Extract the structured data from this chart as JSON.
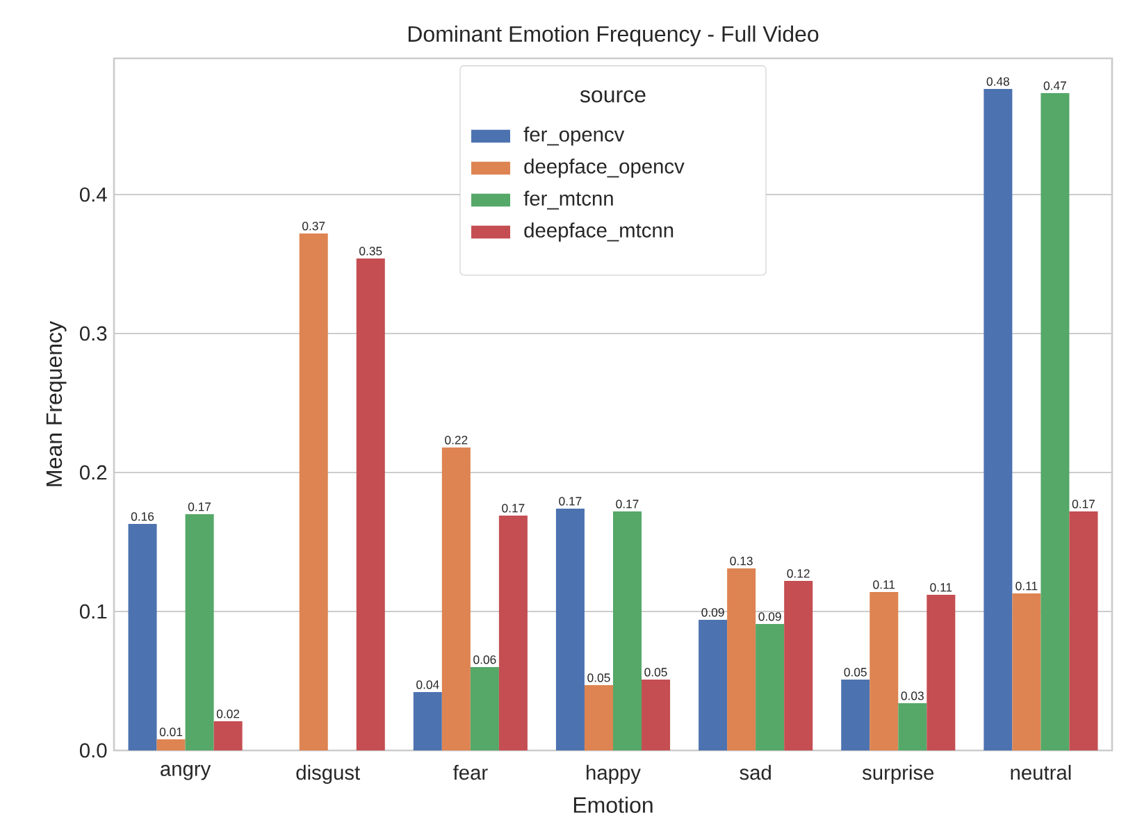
{
  "chart_data": {
    "type": "bar",
    "title": "Dominant Emotion Frequency - Full Video",
    "xlabel": "Emotion",
    "ylabel": "Mean Frequency",
    "legend_title": "source",
    "categories": [
      "angry",
      "disgust",
      "fear",
      "happy",
      "sad",
      "surprise",
      "neutral"
    ],
    "series": [
      {
        "name": "fer_opencv",
        "color": "#4c72b0",
        "values": [
          0.163,
          null,
          0.042,
          0.174,
          0.094,
          0.051,
          0.476
        ],
        "value_labels": [
          "0.16",
          null,
          "0.04",
          "0.17",
          "0.09",
          "0.05",
          "0.48"
        ]
      },
      {
        "name": "deepface_opencv",
        "color": "#dd8452",
        "values": [
          0.008,
          0.372,
          0.218,
          0.047,
          0.131,
          0.114,
          0.113
        ],
        "value_labels": [
          "0.01",
          "0.37",
          "0.22",
          "0.05",
          "0.13",
          "0.11",
          "0.11"
        ]
      },
      {
        "name": "fer_mtcnn",
        "color": "#55a868",
        "values": [
          0.17,
          null,
          0.06,
          0.172,
          0.091,
          0.034,
          0.473
        ],
        "value_labels": [
          "0.17",
          null,
          "0.06",
          "0.17",
          "0.09",
          "0.03",
          "0.47"
        ]
      },
      {
        "name": "deepface_mtcnn",
        "color": "#c44e52",
        "values": [
          0.021,
          0.354,
          0.169,
          0.051,
          0.122,
          0.112,
          0.172
        ],
        "value_labels": [
          "0.02",
          "0.35",
          "0.17",
          "0.05",
          "0.12",
          "0.11",
          "0.17"
        ]
      }
    ],
    "ylim": [
      0,
      0.498
    ],
    "yticks": [
      {
        "value": 0,
        "label": "0.0"
      },
      {
        "value": 0.1,
        "label": "0.1"
      },
      {
        "value": 0.2,
        "label": "0.2"
      },
      {
        "value": 0.3,
        "label": "0.3"
      },
      {
        "value": 0.4,
        "label": "0.4"
      }
    ],
    "grid": "y",
    "legend": "top"
  }
}
